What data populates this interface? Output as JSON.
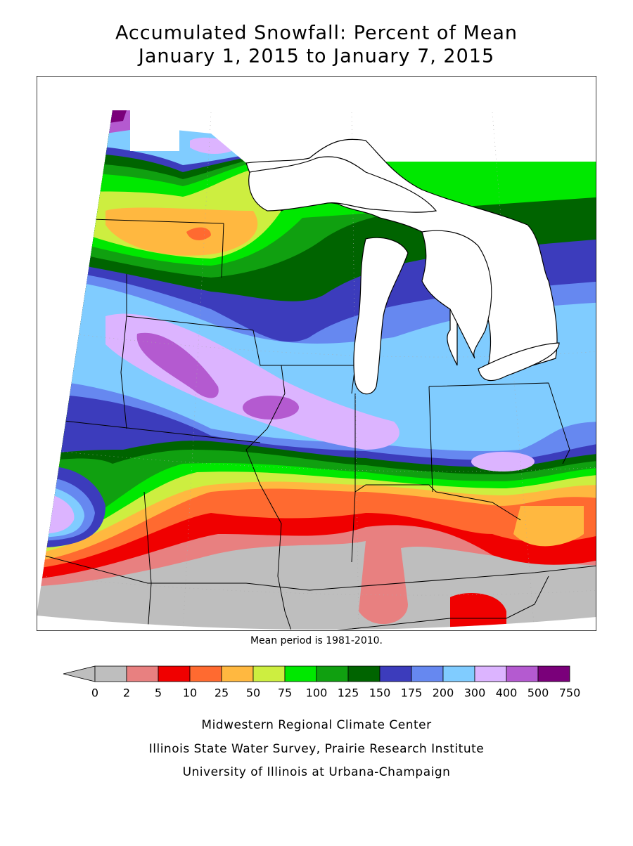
{
  "title": [
    "Accumulated Snowfall: Percent of Mean",
    "January 1, 2015 to January 7, 2015"
  ],
  "note": "Mean period is 1981-2010.",
  "legend": {
    "ticks": [
      0,
      2,
      5,
      10,
      25,
      50,
      75,
      100,
      125,
      150,
      175,
      200,
      300,
      400,
      500,
      750
    ],
    "colors": [
      "#bebebe",
      "#e88080",
      "#f00000",
      "#ff6a30",
      "#ffb840",
      "#cdee40",
      "#00e800",
      "#10a010",
      "#006400",
      "#3c3cbc",
      "#6688f0",
      "#80ccff",
      "#dcb4ff",
      "#b45ad0",
      "#7a007a"
    ]
  },
  "credits": [
    "Midwestern Regional Climate Center",
    "Illinois State Water Survey, Prairie Research Institute",
    "University of Illinois at Urbana-Champaign"
  ]
}
